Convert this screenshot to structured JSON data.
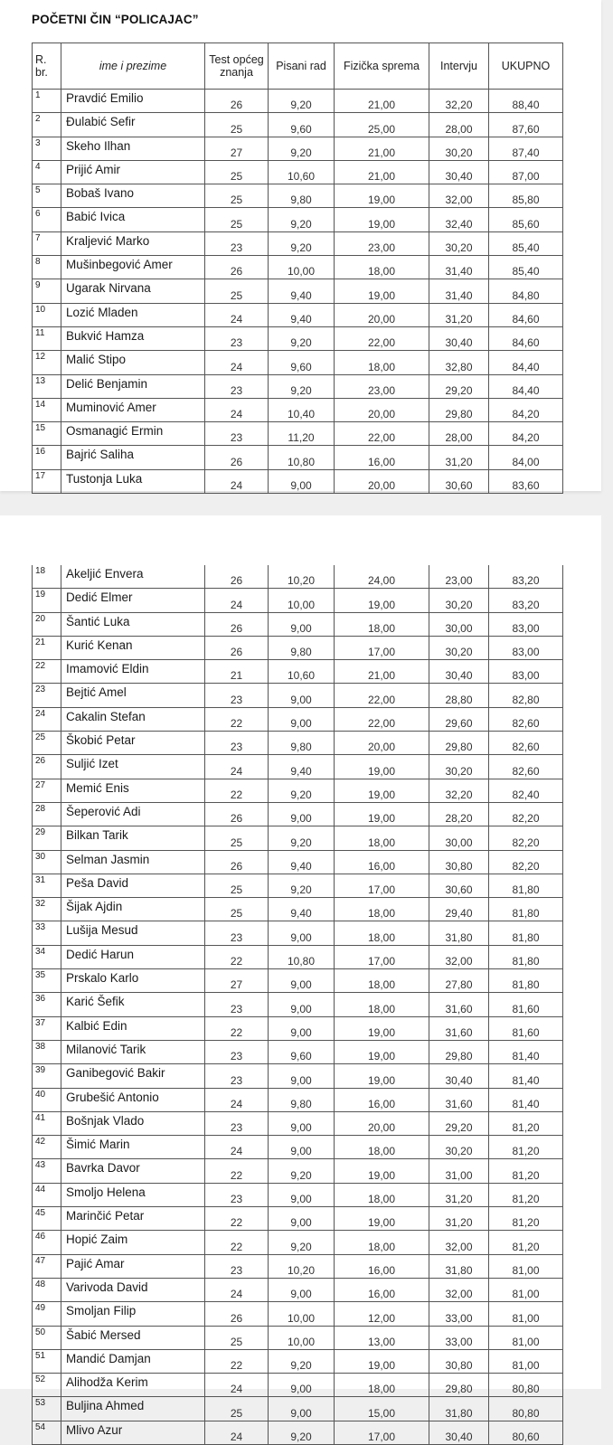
{
  "title": "POČETNI ČIN  “POLICAJAC”",
  "headers": {
    "rbr": "R. br.",
    "name": "ime i prezime",
    "test": "Test općeg znanja",
    "pisani": "Pisani rad",
    "fizicka": "Fizička sprema",
    "intervju": "Intervju",
    "ukupno": "UKUPNO"
  },
  "page1_rows": [
    {
      "no": "1",
      "name": "Pravdić Emilio",
      "test": "26",
      "pisani": "9,20",
      "fizicka": "21,00",
      "intervju": "32,20",
      "ukupno": "88,40"
    },
    {
      "no": "2",
      "name": "Đulabić Sefir",
      "test": "25",
      "pisani": "9,60",
      "fizicka": "25,00",
      "intervju": "28,00",
      "ukupno": "87,60"
    },
    {
      "no": "3",
      "name": "Skeho Ilhan",
      "test": "27",
      "pisani": "9,20",
      "fizicka": "21,00",
      "intervju": "30,20",
      "ukupno": "87,40"
    },
    {
      "no": "4",
      "name": "Prijić Amir",
      "test": "25",
      "pisani": "10,60",
      "fizicka": "21,00",
      "intervju": "30,40",
      "ukupno": "87,00"
    },
    {
      "no": "5",
      "name": "Bobaš Ivano",
      "test": "25",
      "pisani": "9,80",
      "fizicka": "19,00",
      "intervju": "32,00",
      "ukupno": "85,80"
    },
    {
      "no": "6",
      "name": "Babić Ivica",
      "test": "25",
      "pisani": "9,20",
      "fizicka": "19,00",
      "intervju": "32,40",
      "ukupno": "85,60"
    },
    {
      "no": "7",
      "name": "Kraljević Marko",
      "test": "23",
      "pisani": "9,20",
      "fizicka": "23,00",
      "intervju": "30,20",
      "ukupno": "85,40"
    },
    {
      "no": "8",
      "name": "Mušinbegović Amer",
      "test": "26",
      "pisani": "10,00",
      "fizicka": "18,00",
      "intervju": "31,40",
      "ukupno": "85,40"
    },
    {
      "no": "9",
      "name": "Ugarak Nirvana",
      "test": "25",
      "pisani": "9,40",
      "fizicka": "19,00",
      "intervju": "31,40",
      "ukupno": "84,80"
    },
    {
      "no": "10",
      "name": "Lozić Mladen",
      "test": "24",
      "pisani": "9,40",
      "fizicka": "20,00",
      "intervju": "31,20",
      "ukupno": "84,60"
    },
    {
      "no": "11",
      "name": "Bukvić Hamza",
      "test": "23",
      "pisani": "9,20",
      "fizicka": "22,00",
      "intervju": "30,40",
      "ukupno": "84,60"
    },
    {
      "no": "12",
      "name": "Malić Stipo",
      "test": "24",
      "pisani": "9,60",
      "fizicka": "18,00",
      "intervju": "32,80",
      "ukupno": "84,40"
    },
    {
      "no": "13",
      "name": "Delić Benjamin",
      "test": "23",
      "pisani": "9,20",
      "fizicka": "23,00",
      "intervju": "29,20",
      "ukupno": "84,40"
    },
    {
      "no": "14",
      "name": "Muminović Amer",
      "test": "24",
      "pisani": "10,40",
      "fizicka": "20,00",
      "intervju": "29,80",
      "ukupno": "84,20"
    },
    {
      "no": "15",
      "name": "Osmanagić Ermin",
      "test": "23",
      "pisani": "11,20",
      "fizicka": "22,00",
      "intervju": "28,00",
      "ukupno": "84,20"
    },
    {
      "no": "16",
      "name": "Bajrić Saliha",
      "test": "26",
      "pisani": "10,80",
      "fizicka": "16,00",
      "intervju": "31,20",
      "ukupno": "84,00"
    },
    {
      "no": "17",
      "name": "Tustonja Luka",
      "test": "24",
      "pisani": "9,00",
      "fizicka": "20,00",
      "intervju": "30,60",
      "ukupno": "83,60"
    }
  ],
  "page2_rows": [
    {
      "no": "18",
      "name": "Akeljić Envera",
      "test": "26",
      "pisani": "10,20",
      "fizicka": "24,00",
      "intervju": "23,00",
      "ukupno": "83,20"
    },
    {
      "no": "19",
      "name": "Dedić Elmer",
      "test": "24",
      "pisani": "10,00",
      "fizicka": "19,00",
      "intervju": "30,20",
      "ukupno": "83,20"
    },
    {
      "no": "20",
      "name": "Šantić Luka",
      "test": "26",
      "pisani": "9,00",
      "fizicka": "18,00",
      "intervju": "30,00",
      "ukupno": "83,00"
    },
    {
      "no": "21",
      "name": "Kurić Kenan",
      "test": "26",
      "pisani": "9,80",
      "fizicka": "17,00",
      "intervju": "30,20",
      "ukupno": "83,00"
    },
    {
      "no": "22",
      "name": "Imamović Eldin",
      "test": "21",
      "pisani": "10,60",
      "fizicka": "21,00",
      "intervju": "30,40",
      "ukupno": "83,00"
    },
    {
      "no": "23",
      "name": "Bejtić Amel",
      "test": "23",
      "pisani": "9,00",
      "fizicka": "22,00",
      "intervju": "28,80",
      "ukupno": "82,80"
    },
    {
      "no": "24",
      "name": "Cakalin Stefan",
      "test": "22",
      "pisani": "9,00",
      "fizicka": "22,00",
      "intervju": "29,60",
      "ukupno": "82,60"
    },
    {
      "no": "25",
      "name": "Škobić Petar",
      "test": "23",
      "pisani": "9,80",
      "fizicka": "20,00",
      "intervju": "29,80",
      "ukupno": "82,60"
    },
    {
      "no": "26",
      "name": "Suljić Izet",
      "test": "24",
      "pisani": "9,40",
      "fizicka": "19,00",
      "intervju": "30,20",
      "ukupno": "82,60"
    },
    {
      "no": "27",
      "name": "Memić Enis",
      "test": "22",
      "pisani": "9,20",
      "fizicka": "19,00",
      "intervju": "32,20",
      "ukupno": "82,40"
    },
    {
      "no": "28",
      "name": "Šeperović Adi",
      "test": "26",
      "pisani": "9,00",
      "fizicka": "19,00",
      "intervju": "28,20",
      "ukupno": "82,20"
    },
    {
      "no": "29",
      "name": "Bilkan Tarik",
      "test": "25",
      "pisani": "9,20",
      "fizicka": "18,00",
      "intervju": "30,00",
      "ukupno": "82,20"
    },
    {
      "no": "30",
      "name": "Selman Jasmin",
      "test": "26",
      "pisani": "9,40",
      "fizicka": "16,00",
      "intervju": "30,80",
      "ukupno": "82,20"
    },
    {
      "no": "31",
      "name": "Peša David",
      "test": "25",
      "pisani": "9,20",
      "fizicka": "17,00",
      "intervju": "30,60",
      "ukupno": "81,80"
    },
    {
      "no": "32",
      "name": "Šijak Ajdin",
      "test": "25",
      "pisani": "9,40",
      "fizicka": "18,00",
      "intervju": "29,40",
      "ukupno": "81,80"
    },
    {
      "no": "33",
      "name": "Lušija Mesud",
      "test": "23",
      "pisani": "9,00",
      "fizicka": "18,00",
      "intervju": "31,80",
      "ukupno": "81,80"
    },
    {
      "no": "34",
      "name": "Dedić Harun",
      "test": "22",
      "pisani": "10,80",
      "fizicka": "17,00",
      "intervju": "32,00",
      "ukupno": "81,80"
    },
    {
      "no": "35",
      "name": "Prskalo  Karlo",
      "test": "27",
      "pisani": "9,00",
      "fizicka": "18,00",
      "intervju": "27,80",
      "ukupno": "81,80"
    },
    {
      "no": "36",
      "name": "Karić Šefik",
      "test": "23",
      "pisani": "9,00",
      "fizicka": "18,00",
      "intervju": "31,60",
      "ukupno": "81,60"
    },
    {
      "no": "37",
      "name": "Kalbić Edin",
      "test": "22",
      "pisani": "9,00",
      "fizicka": "19,00",
      "intervju": "31,60",
      "ukupno": "81,60"
    },
    {
      "no": "38",
      "name": "Milanović Tarik",
      "test": "23",
      "pisani": "9,60",
      "fizicka": "19,00",
      "intervju": "29,80",
      "ukupno": "81,40"
    },
    {
      "no": "39",
      "name": "Ganibegović Bakir",
      "test": "23",
      "pisani": "9,00",
      "fizicka": "19,00",
      "intervju": "30,40",
      "ukupno": "81,40"
    },
    {
      "no": "40",
      "name": "Grubešić Antonio",
      "test": "24",
      "pisani": "9,80",
      "fizicka": "16,00",
      "intervju": "31,60",
      "ukupno": "81,40"
    },
    {
      "no": "41",
      "name": "Bošnjak Vlado",
      "test": "23",
      "pisani": "9,00",
      "fizicka": "20,00",
      "intervju": "29,20",
      "ukupno": "81,20"
    },
    {
      "no": "42",
      "name": "Šimić Marin",
      "test": "24",
      "pisani": "9,00",
      "fizicka": "18,00",
      "intervju": "30,20",
      "ukupno": "81,20"
    },
    {
      "no": "43",
      "name": "Bavrka Davor",
      "test": "22",
      "pisani": "9,20",
      "fizicka": "19,00",
      "intervju": "31,00",
      "ukupno": "81,20"
    },
    {
      "no": "44",
      "name": "Smoljo Helena",
      "test": "23",
      "pisani": "9,00",
      "fizicka": "18,00",
      "intervju": "31,20",
      "ukupno": "81,20"
    },
    {
      "no": "45",
      "name": "Marinčić Petar",
      "test": "22",
      "pisani": "9,00",
      "fizicka": "19,00",
      "intervju": "31,20",
      "ukupno": "81,20"
    },
    {
      "no": "46",
      "name": "Hopić Zaim",
      "test": "22",
      "pisani": "9,20",
      "fizicka": "18,00",
      "intervju": "32,00",
      "ukupno": "81,20"
    },
    {
      "no": "47",
      "name": "Pajić Amar",
      "test": "23",
      "pisani": "10,20",
      "fizicka": "16,00",
      "intervju": "31,80",
      "ukupno": "81,00"
    },
    {
      "no": "48",
      "name": "Varivoda David",
      "test": "24",
      "pisani": "9,00",
      "fizicka": "16,00",
      "intervju": "32,00",
      "ukupno": "81,00"
    },
    {
      "no": "49",
      "name": "Smoljan Filip",
      "test": "26",
      "pisani": "10,00",
      "fizicka": "12,00",
      "intervju": "33,00",
      "ukupno": "81,00"
    },
    {
      "no": "50",
      "name": "Šabić Mersed",
      "test": "25",
      "pisani": "10,00",
      "fizicka": "13,00",
      "intervju": "33,00",
      "ukupno": "81,00"
    },
    {
      "no": "51",
      "name": "Mandić Damjan",
      "test": "22",
      "pisani": "9,20",
      "fizicka": "19,00",
      "intervju": "30,80",
      "ukupno": "81,00"
    },
    {
      "no": "52",
      "name": "Alihodža Kerim",
      "test": "24",
      "pisani": "9,00",
      "fizicka": "18,00",
      "intervju": "29,80",
      "ukupno": "80,80"
    },
    {
      "no": "53",
      "name": "Buljina Ahmed",
      "test": "25",
      "pisani": "9,00",
      "fizicka": "15,00",
      "intervju": "31,80",
      "ukupno": "80,80"
    },
    {
      "no": "54",
      "name": "Mlivo Azur",
      "test": "24",
      "pisani": "9,20",
      "fizicka": "17,00",
      "intervju": "30,40",
      "ukupno": "80,60"
    }
  ]
}
